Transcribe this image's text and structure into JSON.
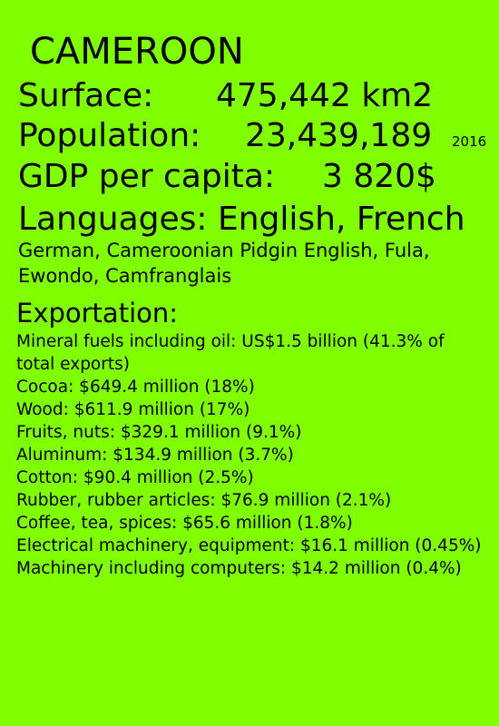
{
  "country": "CAMEROON",
  "stats": {
    "surface": {
      "label": "Surface:",
      "value": "475,442 km2"
    },
    "population": {
      "label": "Population:",
      "value": "23,439,189",
      "year": "2016"
    },
    "gdp": {
      "label": "GDP per capita:",
      "value": "3 820$"
    }
  },
  "languages": {
    "heading": "Languages: English, French",
    "others": "German, Cameroonian Pidgin English, Fula, Ewondo, Camfranglais"
  },
  "exportation": {
    "heading": "Exportation:",
    "items": [
      "Mineral fuels including oil: US$1.5 billion (41.3% of total exports)",
      "Cocoa: $649.4 million (18%)",
      "Wood: $611.9 million (17%)",
      "Fruits, nuts: $329.1 million (9.1%)",
      "Aluminum: $134.9 million (3.7%)",
      "Cotton: $90.4 million (2.5%)",
      "Rubber, rubber articles: $76.9 million (2.1%)",
      "Coffee, tea, spices: $65.6 million (1.8%)",
      "Electrical machinery, equipment: $16.1 million (0.45%)",
      "Machinery including computers: $14.2 million (0.4%)"
    ]
  },
  "colors": {
    "background": "#80ff00",
    "text": "#000000"
  }
}
